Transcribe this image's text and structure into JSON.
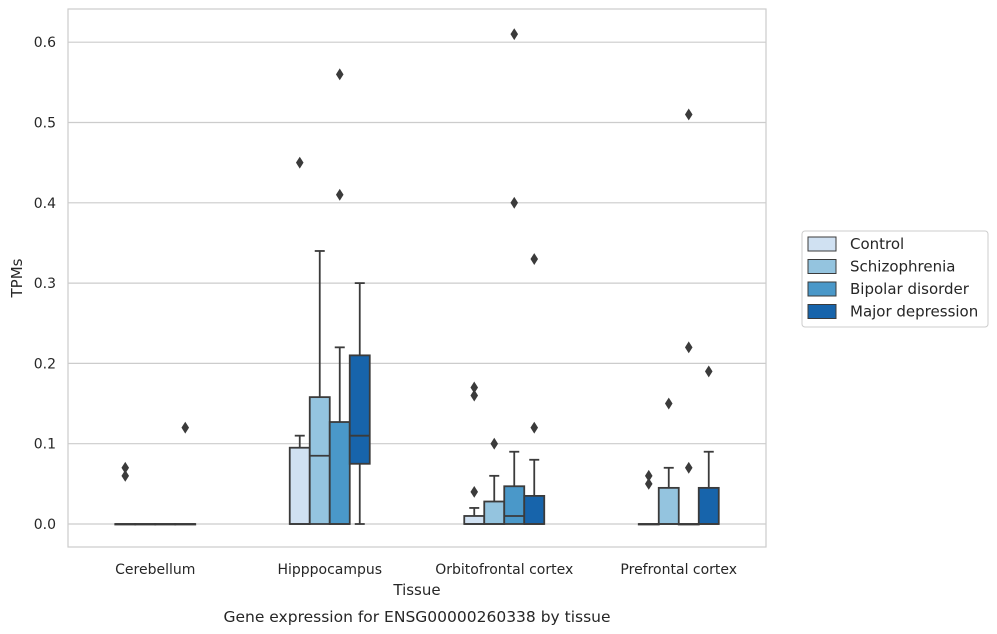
{
  "chart_data": {
    "type": "box",
    "xlabel": "Tissue",
    "ylabel": "TPMs",
    "caption": "Gene expression for ENSG00000260338 by tissue",
    "categories": [
      "Cerebellum",
      "Hipppocampus",
      "Orbitofrontal cortex",
      "Prefrontal cortex"
    ],
    "ylim": [
      -0.03,
      0.64
    ],
    "yticks": [
      0.0,
      0.1,
      0.2,
      0.3,
      0.4,
      0.5,
      0.6
    ],
    "ytick_labels": [
      "0.0",
      "0.1",
      "0.2",
      "0.3",
      "0.4",
      "0.5",
      "0.6"
    ],
    "grid": "horizontal",
    "legend_position": "right",
    "series": [
      {
        "name": "Control",
        "color": "#d0e1f2",
        "boxes": [
          {
            "q1": 0.0,
            "median": 0.0,
            "q3": 0.0,
            "whislo": 0.0,
            "whishi": 0.0,
            "fliers": [
              0.06,
              0.07
            ]
          },
          {
            "q1": 0.0,
            "median": 0.0,
            "q3": 0.095,
            "whislo": 0.0,
            "whishi": 0.11,
            "fliers": [
              0.45
            ]
          },
          {
            "q1": 0.0,
            "median": 0.0,
            "q3": 0.01,
            "whislo": 0.0,
            "whishi": 0.02,
            "fliers": [
              0.04,
              0.16,
              0.17
            ]
          },
          {
            "q1": 0.0,
            "median": 0.0,
            "q3": 0.0,
            "whislo": 0.0,
            "whishi": 0.0,
            "fliers": [
              0.05,
              0.06
            ]
          }
        ]
      },
      {
        "name": "Schizophrenia",
        "color": "#94c4df",
        "boxes": [
          {
            "q1": 0.0,
            "median": 0.0,
            "q3": 0.0,
            "whislo": 0.0,
            "whishi": 0.0,
            "fliers": []
          },
          {
            "q1": 0.0,
            "median": 0.085,
            "q3": 0.158,
            "whislo": 0.0,
            "whishi": 0.34,
            "fliers": []
          },
          {
            "q1": 0.0,
            "median": 0.0,
            "q3": 0.028,
            "whislo": 0.0,
            "whishi": 0.06,
            "fliers": [
              0.1
            ]
          },
          {
            "q1": 0.0,
            "median": 0.0,
            "q3": 0.045,
            "whislo": 0.0,
            "whishi": 0.07,
            "fliers": [
              0.15
            ]
          }
        ]
      },
      {
        "name": "Bipolar disorder",
        "color": "#4a98c9",
        "boxes": [
          {
            "q1": 0.0,
            "median": 0.0,
            "q3": 0.0,
            "whislo": 0.0,
            "whishi": 0.0,
            "fliers": []
          },
          {
            "q1": 0.0,
            "median": 0.0,
            "q3": 0.127,
            "whislo": 0.0,
            "whishi": 0.22,
            "fliers": [
              0.41,
              0.56
            ]
          },
          {
            "q1": 0.0,
            "median": 0.01,
            "q3": 0.047,
            "whislo": 0.0,
            "whishi": 0.09,
            "fliers": [
              0.4,
              0.61
            ]
          },
          {
            "q1": 0.0,
            "median": 0.0,
            "q3": 0.0,
            "whislo": 0.0,
            "whishi": 0.0,
            "fliers": [
              0.07,
              0.22,
              0.51
            ]
          }
        ]
      },
      {
        "name": "Major depression",
        "color": "#1764ab",
        "boxes": [
          {
            "q1": 0.0,
            "median": 0.0,
            "q3": 0.0,
            "whislo": 0.0,
            "whishi": 0.0,
            "fliers": [
              0.12
            ]
          },
          {
            "q1": 0.075,
            "median": 0.11,
            "q3": 0.21,
            "whislo": 0.0,
            "whishi": 0.3,
            "fliers": []
          },
          {
            "q1": 0.0,
            "median": 0.0,
            "q3": 0.035,
            "whislo": 0.0,
            "whishi": 0.08,
            "fliers": [
              0.12,
              0.33
            ]
          },
          {
            "q1": 0.0,
            "median": 0.0,
            "q3": 0.045,
            "whislo": 0.0,
            "whishi": 0.09,
            "fliers": [
              0.19
            ]
          }
        ]
      }
    ]
  }
}
